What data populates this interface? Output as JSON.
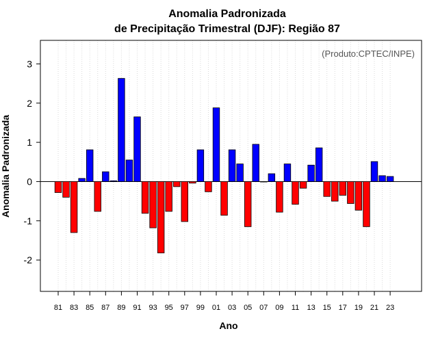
{
  "chart_data": {
    "type": "bar",
    "title_line1": "Anomalia Padronizada",
    "title_line2": "de Precipitação Trimestral (DJF): Região 87",
    "xlabel": "Ano",
    "ylabel": "Anomalia Padronizada",
    "annotation": "(Produto:CPTEC/INPE)",
    "ylim": [
      -2.8,
      3.6
    ],
    "yticks": [
      -2,
      -1,
      0,
      1,
      2,
      3
    ],
    "grid": "vertical-dotted",
    "positive_color": "#0000ff",
    "negative_color": "#ff0000",
    "categories": [
      "81",
      "82",
      "83",
      "84",
      "85",
      "86",
      "87",
      "88",
      "89",
      "90",
      "91",
      "92",
      "93",
      "94",
      "95",
      "96",
      "97",
      "98",
      "99",
      "00",
      "01",
      "02",
      "03",
      "04",
      "05",
      "06",
      "07",
      "08",
      "09",
      "10",
      "11",
      "12",
      "13",
      "14",
      "15",
      "16",
      "17",
      "18",
      "19",
      "20",
      "21",
      "22",
      "23"
    ],
    "xtick_labels": [
      "81",
      "83",
      "85",
      "87",
      "89",
      "91",
      "93",
      "95",
      "97",
      "99",
      "01",
      "03",
      "05",
      "07",
      "09",
      "11",
      "13",
      "15",
      "17",
      "19",
      "21",
      "23"
    ],
    "values": [
      -0.28,
      -0.4,
      -1.3,
      0.08,
      0.81,
      -0.76,
      0.25,
      0.02,
      2.63,
      0.55,
      1.65,
      -0.81,
      -1.18,
      -1.82,
      -0.76,
      -0.13,
      -1.02,
      -0.04,
      0.81,
      -0.26,
      1.88,
      -0.86,
      0.81,
      0.45,
      -1.15,
      0.95,
      0.0,
      0.2,
      -0.78,
      0.45,
      -0.58,
      -0.17,
      0.42,
      0.86,
      -0.38,
      -0.5,
      -0.35,
      -0.56,
      -0.73,
      -1.15,
      0.51,
      0.15,
      0.13
    ]
  }
}
